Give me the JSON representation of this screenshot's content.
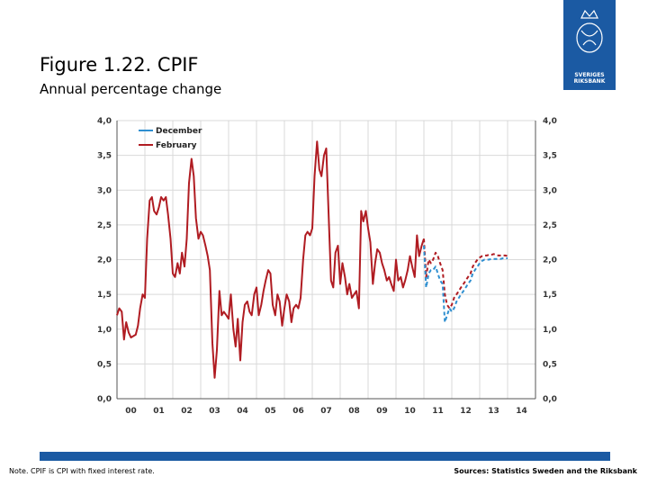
{
  "logo": {
    "text_line1": "SVERIGES",
    "text_line2": "RIKSBANK"
  },
  "title": "Figure 1.22. CPIF",
  "subtitle": "Annual percentage change",
  "note": "Note. CPIF is CPI with fixed interest rate.",
  "sources": "Sources: Statistics Sweden and the Riksbank",
  "colors": {
    "brand": "#1b5aa3",
    "december": "#2f8fd0",
    "february": "#b01c22",
    "grid": "#d9d9d9"
  },
  "chart_data": {
    "type": "line",
    "title": "Figure 1.22. CPIF",
    "subtitle": "Annual percentage change",
    "ylim": [
      0,
      4
    ],
    "y_ticks": [
      "0,0",
      "0,5",
      "1,0",
      "1,5",
      "2,0",
      "2,5",
      "3,0",
      "3,5",
      "4,0"
    ],
    "xlim": [
      0,
      15
    ],
    "x_tick_labels": [
      "00",
      "01",
      "02",
      "03",
      "04",
      "05",
      "06",
      "07",
      "08",
      "09",
      "10",
      "11",
      "12",
      "13",
      "14"
    ],
    "grid": true,
    "legend_position": "top-left",
    "series": [
      {
        "name": "February",
        "style": "solid",
        "x": [
          0,
          0.08,
          0.17,
          0.25,
          0.33,
          0.42,
          0.5,
          0.58,
          0.67,
          0.75,
          0.83,
          0.92,
          1,
          1.08,
          1.17,
          1.25,
          1.33,
          1.42,
          1.5,
          1.58,
          1.67,
          1.75,
          1.83,
          1.92,
          2,
          2.08,
          2.17,
          2.25,
          2.33,
          2.42,
          2.5,
          2.58,
          2.67,
          2.75,
          2.83,
          2.92,
          3,
          3.08,
          3.17,
          3.25,
          3.33,
          3.42,
          3.5,
          3.58,
          3.67,
          3.75,
          3.83,
          3.92,
          4,
          4.08,
          4.17,
          4.25,
          4.33,
          4.42,
          4.5,
          4.58,
          4.67,
          4.75,
          4.83,
          4.92,
          5,
          5.08,
          5.17,
          5.25,
          5.33,
          5.42,
          5.5,
          5.58,
          5.67,
          5.75,
          5.83,
          5.92,
          6,
          6.08,
          6.17,
          6.25,
          6.33,
          6.42,
          6.5,
          6.58,
          6.67,
          6.75,
          6.83,
          6.92,
          7,
          7.08,
          7.17,
          7.25,
          7.33,
          7.42,
          7.5,
          7.58,
          7.67,
          7.75,
          7.83,
          7.92,
          8,
          8.08,
          8.17,
          8.25,
          8.33,
          8.42,
          8.5,
          8.58,
          8.67,
          8.75,
          8.83,
          8.92,
          9,
          9.08,
          9.17,
          9.25,
          9.33,
          9.42,
          9.5,
          9.58,
          9.67,
          9.75,
          9.83,
          9.92,
          10,
          10.08,
          10.17,
          10.25,
          10.33,
          10.42,
          10.5,
          10.58,
          10.67,
          10.75,
          10.83,
          10.92,
          11
        ],
        "values": [
          1.2,
          1.3,
          1.25,
          0.85,
          1.1,
          0.95,
          0.88,
          0.9,
          0.92,
          1.05,
          1.3,
          1.5,
          1.45,
          2.3,
          2.85,
          2.9,
          2.7,
          2.65,
          2.75,
          2.9,
          2.85,
          2.9,
          2.65,
          2.3,
          1.8,
          1.75,
          1.95,
          1.8,
          2.1,
          1.9,
          2.3,
          3.1,
          3.45,
          3.2,
          2.6,
          2.3,
          2.4,
          2.35,
          2.2,
          2.05,
          1.85,
          0.8,
          0.3,
          0.7,
          1.55,
          1.2,
          1.25,
          1.2,
          1.15,
          1.5,
          1.0,
          0.75,
          1.15,
          0.55,
          1.1,
          1.35,
          1.4,
          1.25,
          1.2,
          1.5,
          1.6,
          1.2,
          1.35,
          1.55,
          1.7,
          1.85,
          1.8,
          1.35,
          1.2,
          1.5,
          1.4,
          1.05,
          1.3,
          1.5,
          1.4,
          1.1,
          1.3,
          1.35,
          1.3,
          1.45,
          2.0,
          2.35,
          2.4,
          2.35,
          2.45,
          3.2,
          3.7,
          3.3,
          3.2,
          3.5,
          3.6,
          2.7,
          1.7,
          1.6,
          2.1,
          2.2,
          1.65,
          1.95,
          1.75,
          1.5,
          1.65,
          1.45,
          1.5,
          1.55,
          1.3,
          2.7,
          2.55,
          2.7,
          2.45,
          2.25,
          1.65,
          1.95,
          2.15,
          2.1,
          1.95,
          1.85,
          1.7,
          1.75,
          1.65,
          1.55,
          2.0,
          1.7,
          1.75,
          1.6,
          1.7,
          1.85,
          2.05,
          1.9,
          1.75,
          2.35,
          2.05,
          2.2,
          2.3
        ]
      },
      {
        "name": "February",
        "style": "dashed",
        "x": [
          11,
          11.08,
          11.17,
          11.25,
          11.33,
          11.42,
          11.5,
          11.58,
          11.67,
          11.75,
          11.83,
          11.92,
          12,
          12.08,
          12.17,
          12.25,
          12.33,
          12.42,
          12.5,
          12.58,
          12.67,
          12.75,
          12.83,
          12.92,
          13,
          13.08,
          13.17,
          13.25,
          13.33,
          13.42,
          13.5,
          13.58,
          13.67,
          13.75,
          13.83,
          13.92,
          14
        ],
        "values": [
          2.3,
          1.75,
          2.0,
          1.95,
          2.0,
          2.1,
          2.05,
          1.95,
          1.85,
          1.5,
          1.35,
          1.3,
          1.35,
          1.45,
          1.5,
          1.55,
          1.6,
          1.65,
          1.7,
          1.75,
          1.8,
          1.9,
          1.95,
          2.0,
          2.03,
          2.05,
          2.06,
          2.06,
          2.07,
          2.07,
          2.08,
          2.07,
          2.06,
          2.06,
          2.06,
          2.06,
          2.05
        ]
      },
      {
        "name": "December",
        "style": "dashed",
        "x": [
          11,
          11.08,
          11.17,
          11.25,
          11.33,
          11.42,
          11.5,
          11.58,
          11.67,
          11.75,
          11.83,
          11.92,
          12,
          12.08,
          12.17,
          12.25,
          12.33,
          12.42,
          12.5,
          12.58,
          12.67,
          12.75,
          12.83,
          12.92,
          13,
          13.08,
          13.17,
          13.25,
          13.33,
          13.42,
          13.5,
          13.58,
          13.67,
          13.75,
          13.83,
          13.92,
          14
        ],
        "values": [
          2.2,
          1.6,
          1.8,
          1.85,
          1.85,
          1.9,
          1.8,
          1.7,
          1.65,
          1.1,
          1.2,
          1.3,
          1.25,
          1.3,
          1.4,
          1.45,
          1.5,
          1.55,
          1.6,
          1.65,
          1.7,
          1.8,
          1.85,
          1.9,
          1.95,
          1.98,
          2.0,
          2.0,
          2.0,
          2.01,
          2.01,
          2.01,
          2.01,
          2.01,
          2.02,
          2.02,
          2.02
        ]
      }
    ]
  }
}
